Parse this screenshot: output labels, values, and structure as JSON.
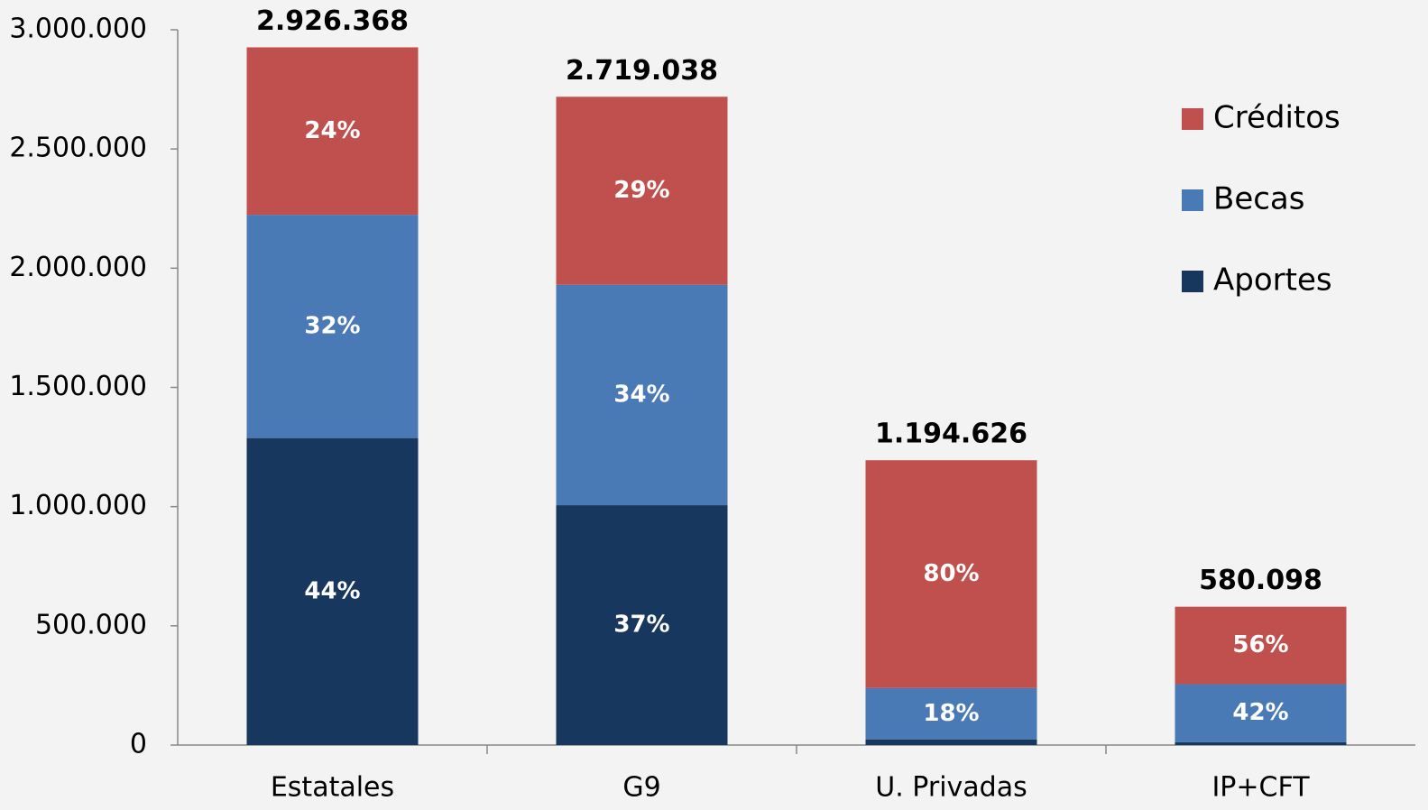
{
  "chart_data": {
    "type": "stacked_percent_bar",
    "categories": [
      "Estatales",
      "G9",
      "U. Privadas",
      "IP+CFT"
    ],
    "totals": [
      2926368,
      2719038,
      1194626,
      580098
    ],
    "total_labels": [
      "2.926.368",
      "2.719.038",
      "1.194.626",
      "580.098"
    ],
    "series": [
      {
        "name": "Aportes",
        "color": "#17375e",
        "values": [
          44,
          37,
          2,
          2
        ],
        "value_labels": [
          "44%",
          "37%",
          null,
          null
        ]
      },
      {
        "name": "Becas",
        "color": "#4a7ab5",
        "values": [
          32,
          34,
          18,
          42
        ],
        "value_labels": [
          "32%",
          "34%",
          "18%",
          "42%"
        ]
      },
      {
        "name": "Créditos",
        "color": "#c0504d",
        "values": [
          24,
          29,
          80,
          56
        ],
        "value_labels": [
          "24%",
          "29%",
          "80%",
          "56%"
        ]
      }
    ],
    "ylim": [
      0,
      3000000
    ],
    "yticks": [
      0,
      {
        "value": 500000,
        "label": "500.000"
      },
      {
        "value": 1000000,
        "label": "1.000.000"
      },
      {
        "value": 1500000,
        "label": "1.500.000"
      },
      {
        "value": 2000000,
        "label": "2.000.000"
      },
      {
        "value": 2500000,
        "label": "2.500.000"
      },
      {
        "value": 3000000,
        "label": "3.000.000"
      }
    ],
    "legend": "right"
  }
}
